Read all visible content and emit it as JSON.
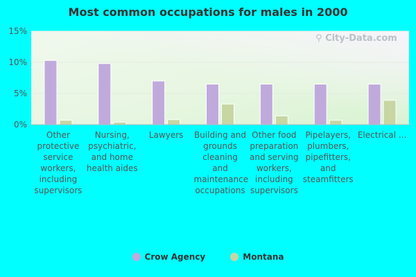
{
  "colors": {
    "series_1": "#c0aadc",
    "series_2": "#c7d6a3",
    "background": "#00ffff"
  },
  "watermark": "City-Data.com",
  "chart_data": {
    "type": "bar",
    "title": "Most common occupations for males in 2000",
    "categories": [
      "Other protective service workers, including supervisors",
      "Nursing, psychiatric, and home health aides",
      "Lawyers",
      "Building and grounds cleaning and maintenance occupations",
      "Other food preparation and serving workers, including supervisors",
      "Pipelayers, plumbers, pipefitters, and steamfitters",
      "Electrical ..."
    ],
    "series": [
      {
        "name": "Crow Agency",
        "values": [
          10.3,
          9.8,
          7.0,
          6.5,
          6.5,
          6.5,
          6.5
        ]
      },
      {
        "name": "Montana",
        "values": [
          0.7,
          0.4,
          0.8,
          3.3,
          1.4,
          0.7,
          3.9
        ]
      }
    ],
    "ylim": [
      0,
      15
    ],
    "yticks": [
      "0%",
      "5%",
      "10%",
      "15%"
    ],
    "ytick_values": [
      0,
      5,
      10,
      15
    ],
    "legend_position": "bottom"
  }
}
